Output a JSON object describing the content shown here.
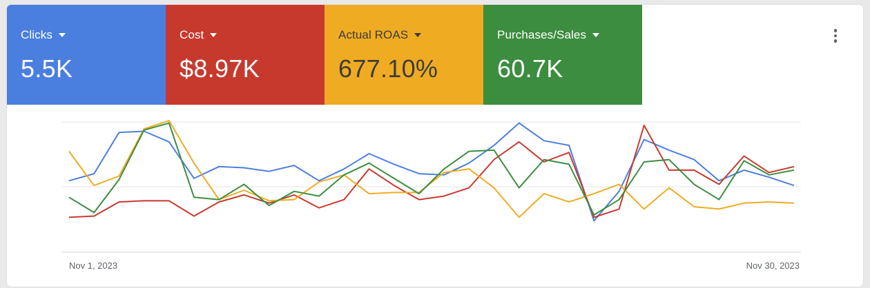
{
  "metrics": [
    {
      "label": "Clicks",
      "value": "5.5K",
      "color": "#4a7fe0",
      "text_color": "#ffffff"
    },
    {
      "label": "Cost",
      "value": "$8.97K",
      "color": "#c8392d",
      "text_color": "#ffffff"
    },
    {
      "label": "Actual ROAS",
      "value": "677.10%",
      "color": "#efab22",
      "text_color": "#3c3c3c"
    },
    {
      "label": "Purchases/Sales",
      "value": "60.7K",
      "color": "#3c8d3f",
      "text_color": "#ffffff"
    }
  ],
  "more_icon": "more-vert-icon",
  "chart_data": {
    "type": "line",
    "x": [
      "Nov 1, 2023",
      "Nov 2, 2023",
      "Nov 3, 2023",
      "Nov 4, 2023",
      "Nov 5, 2023",
      "Nov 6, 2023",
      "Nov 7, 2023",
      "Nov 8, 2023",
      "Nov 9, 2023",
      "Nov 10, 2023",
      "Nov 11, 2023",
      "Nov 12, 2023",
      "Nov 13, 2023",
      "Nov 14, 2023",
      "Nov 15, 2023",
      "Nov 16, 2023",
      "Nov 17, 2023",
      "Nov 18, 2023",
      "Nov 19, 2023",
      "Nov 20, 2023",
      "Nov 21, 2023",
      "Nov 22, 2023",
      "Nov 23, 2023",
      "Nov 24, 2023",
      "Nov 25, 2023",
      "Nov 26, 2023",
      "Nov 27, 2023",
      "Nov 28, 2023",
      "Nov 29, 2023",
      "Nov 30, 2023"
    ],
    "tick_labels": [
      "Nov 1, 2023",
      "Nov 30, 2023"
    ],
    "grid": true,
    "ylim": [
      0,
      100
    ],
    "series": [
      {
        "metric": "Clicks",
        "color": "#4a7fe0",
        "values": [
          46,
          52,
          87,
          88,
          79,
          48,
          58,
          57,
          54,
          59,
          46,
          56,
          69,
          60,
          52,
          51,
          61,
          76,
          95,
          80,
          76,
          12,
          37,
          81,
          72,
          64,
          46,
          55,
          49,
          42
        ]
      },
      {
        "metric": "Cost",
        "color": "#c8392d",
        "values": [
          15,
          16,
          28,
          29,
          29,
          16,
          28,
          34,
          27,
          34,
          23,
          30,
          56,
          42,
          30,
          33,
          40,
          64,
          79,
          62,
          70,
          15,
          22,
          93,
          55,
          55,
          43,
          67,
          53,
          58
        ]
      },
      {
        "metric": "Actual ROAS",
        "color": "#efab22",
        "values": [
          71,
          42,
          50,
          90,
          97,
          61,
          30,
          38,
          29,
          30,
          45,
          51,
          35,
          36,
          36,
          53,
          56,
          40,
          15,
          35,
          28,
          35,
          43,
          22,
          40,
          24,
          22,
          27,
          28,
          27
        ]
      },
      {
        "metric": "Purchases/Sales",
        "color": "#3c8d3f",
        "values": [
          32,
          19,
          47,
          89,
          95,
          32,
          30,
          43,
          25,
          37,
          33,
          51,
          61,
          48,
          35,
          56,
          71,
          72,
          40,
          64,
          60,
          17,
          30,
          62,
          64,
          43,
          30,
          63,
          51,
          55
        ]
      }
    ]
  }
}
